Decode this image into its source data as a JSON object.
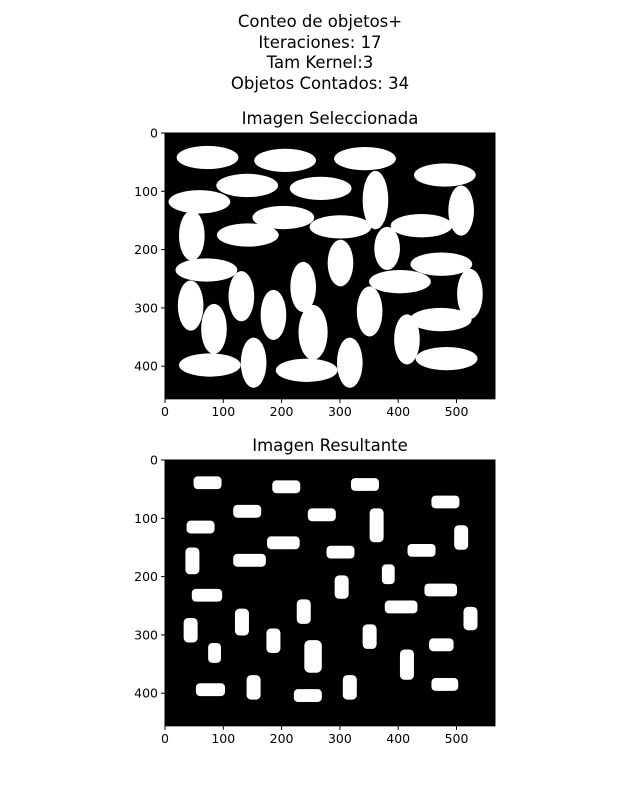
{
  "figure": {
    "suptitle_lines": [
      "Conteo de objetos+",
      "Iteraciones: 17",
      "Tam Kernel:3",
      "Objetos Contados: 34"
    ]
  },
  "panels": {
    "top": {
      "title": "Imagen Seleccionada",
      "x_ticks": [
        "0",
        "100",
        "200",
        "300",
        "400",
        "500"
      ],
      "y_ticks": [
        "0",
        "100",
        "200",
        "300",
        "400"
      ],
      "image": {
        "width": 566,
        "height": 456,
        "background": "#000000",
        "foreground": "#ffffff"
      }
    },
    "bottom": {
      "title": "Imagen Resultante",
      "x_ticks": [
        "0",
        "100",
        "200",
        "300",
        "400",
        "500"
      ],
      "y_ticks": [
        "0",
        "100",
        "200",
        "300",
        "400"
      ],
      "image": {
        "width": 566,
        "height": 456,
        "background": "#000000",
        "foreground": "#ffffff"
      }
    }
  },
  "chart_data": [
    {
      "type": "image",
      "title": "Imagen Seleccionada",
      "xlim": [
        0,
        566
      ],
      "ylim": [
        456,
        0
      ],
      "x_ticks": [
        0,
        100,
        200,
        300,
        400,
        500
      ],
      "y_ticks": [
        0,
        100,
        200,
        300,
        400
      ],
      "objects": [
        {
          "cx": 73,
          "cy": 42,
          "rx": 53,
          "ry": 20
        },
        {
          "cx": 206,
          "cy": 47,
          "rx": 53,
          "ry": 20
        },
        {
          "cx": 343,
          "cy": 44,
          "rx": 53,
          "ry": 20
        },
        {
          "cx": 480,
          "cy": 72,
          "rx": 53,
          "ry": 20
        },
        {
          "cx": 141,
          "cy": 90,
          "rx": 53,
          "ry": 20
        },
        {
          "cx": 267,
          "cy": 95,
          "rx": 53,
          "ry": 20
        },
        {
          "cx": 361,
          "cy": 115,
          "rx": 22,
          "ry": 50
        },
        {
          "cx": 59,
          "cy": 118,
          "rx": 53,
          "ry": 20
        },
        {
          "cx": 508,
          "cy": 133,
          "rx": 22,
          "ry": 43
        },
        {
          "cx": 203,
          "cy": 145,
          "rx": 53,
          "ry": 20
        },
        {
          "cx": 301,
          "cy": 161,
          "rx": 53,
          "ry": 20
        },
        {
          "cx": 440,
          "cy": 159,
          "rx": 53,
          "ry": 20
        },
        {
          "cx": 142,
          "cy": 175,
          "rx": 53,
          "ry": 20
        },
        {
          "cx": 46,
          "cy": 176,
          "rx": 22,
          "ry": 43
        },
        {
          "cx": 381,
          "cy": 198,
          "rx": 22,
          "ry": 37
        },
        {
          "cx": 301,
          "cy": 223,
          "rx": 22,
          "ry": 40
        },
        {
          "cx": 71,
          "cy": 235,
          "rx": 53,
          "ry": 20
        },
        {
          "cx": 474,
          "cy": 225,
          "rx": 53,
          "ry": 20
        },
        {
          "cx": 403,
          "cy": 255,
          "rx": 53,
          "ry": 20
        },
        {
          "cx": 237,
          "cy": 264,
          "rx": 22,
          "ry": 43
        },
        {
          "cx": 131,
          "cy": 280,
          "rx": 22,
          "ry": 43
        },
        {
          "cx": 523,
          "cy": 276,
          "rx": 22,
          "ry": 43
        },
        {
          "cx": 44,
          "cy": 296,
          "rx": 22,
          "ry": 43
        },
        {
          "cx": 351,
          "cy": 306,
          "rx": 22,
          "ry": 43
        },
        {
          "cx": 186,
          "cy": 312,
          "rx": 22,
          "ry": 43
        },
        {
          "cx": 473,
          "cy": 320,
          "rx": 53,
          "ry": 20
        },
        {
          "cx": 84,
          "cy": 336,
          "rx": 22,
          "ry": 43
        },
        {
          "cx": 254,
          "cy": 342,
          "rx": 25,
          "ry": 47
        },
        {
          "cx": 415,
          "cy": 354,
          "rx": 22,
          "ry": 43
        },
        {
          "cx": 483,
          "cy": 387,
          "rx": 53,
          "ry": 20
        },
        {
          "cx": 77,
          "cy": 398,
          "rx": 53,
          "ry": 20
        },
        {
          "cx": 152,
          "cy": 394,
          "rx": 22,
          "ry": 43
        },
        {
          "cx": 317,
          "cy": 394,
          "rx": 22,
          "ry": 43
        },
        {
          "cx": 243,
          "cy": 407,
          "rx": 53,
          "ry": 20
        }
      ]
    },
    {
      "type": "image",
      "title": "Imagen Resultante",
      "xlim": [
        0,
        566
      ],
      "ylim": [
        456,
        0
      ],
      "x_ticks": [
        0,
        100,
        200,
        300,
        400,
        500
      ],
      "y_ticks": [
        0,
        100,
        200,
        300,
        400
      ],
      "object_count": 34,
      "objects": [
        {
          "cx": 73,
          "cy": 39,
          "w": 48,
          "h": 22
        },
        {
          "cx": 208,
          "cy": 46,
          "w": 48,
          "h": 22
        },
        {
          "cx": 343,
          "cy": 42,
          "w": 48,
          "h": 22
        },
        {
          "cx": 481,
          "cy": 72,
          "w": 48,
          "h": 22
        },
        {
          "cx": 141,
          "cy": 88,
          "w": 48,
          "h": 22
        },
        {
          "cx": 269,
          "cy": 94,
          "w": 48,
          "h": 22
        },
        {
          "cx": 363,
          "cy": 112,
          "w": 24,
          "h": 58
        },
        {
          "cx": 61,
          "cy": 115,
          "w": 48,
          "h": 22
        },
        {
          "cx": 508,
          "cy": 133,
          "w": 24,
          "h": 42
        },
        {
          "cx": 203,
          "cy": 142,
          "w": 56,
          "h": 22
        },
        {
          "cx": 301,
          "cy": 158,
          "w": 48,
          "h": 22
        },
        {
          "cx": 440,
          "cy": 155,
          "w": 48,
          "h": 22
        },
        {
          "cx": 145,
          "cy": 172,
          "w": 56,
          "h": 22
        },
        {
          "cx": 47,
          "cy": 173,
          "w": 24,
          "h": 46
        },
        {
          "cx": 383,
          "cy": 196,
          "w": 22,
          "h": 34
        },
        {
          "cx": 303,
          "cy": 218,
          "w": 24,
          "h": 40
        },
        {
          "cx": 72,
          "cy": 232,
          "w": 52,
          "h": 22
        },
        {
          "cx": 473,
          "cy": 223,
          "w": 56,
          "h": 22
        },
        {
          "cx": 405,
          "cy": 252,
          "w": 56,
          "h": 22
        },
        {
          "cx": 238,
          "cy": 260,
          "w": 24,
          "h": 42
        },
        {
          "cx": 132,
          "cy": 278,
          "w": 24,
          "h": 46
        },
        {
          "cx": 524,
          "cy": 272,
          "w": 24,
          "h": 40
        },
        {
          "cx": 44,
          "cy": 292,
          "w": 24,
          "h": 42
        },
        {
          "cx": 351,
          "cy": 303,
          "w": 24,
          "h": 42
        },
        {
          "cx": 186,
          "cy": 310,
          "w": 24,
          "h": 42
        },
        {
          "cx": 474,
          "cy": 317,
          "w": 42,
          "h": 22
        },
        {
          "cx": 85,
          "cy": 331,
          "w": 22,
          "h": 34
        },
        {
          "cx": 254,
          "cy": 337,
          "w": 30,
          "h": 56
        },
        {
          "cx": 415,
          "cy": 351,
          "w": 24,
          "h": 52
        },
        {
          "cx": 480,
          "cy": 385,
          "w": 46,
          "h": 22
        },
        {
          "cx": 78,
          "cy": 394,
          "w": 50,
          "h": 22
        },
        {
          "cx": 152,
          "cy": 390,
          "w": 24,
          "h": 42
        },
        {
          "cx": 317,
          "cy": 390,
          "w": 24,
          "h": 42
        },
        {
          "cx": 245,
          "cy": 404,
          "w": 48,
          "h": 22
        }
      ]
    }
  ]
}
